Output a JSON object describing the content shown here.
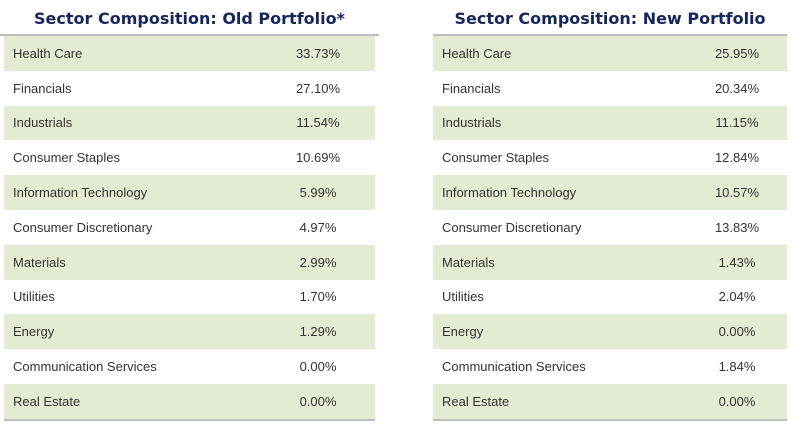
{
  "chart_data": [
    {
      "type": "table",
      "title": "Sector Composition: Old Portfolio*",
      "rows": [
        {
          "sector": "Health Care",
          "value": "33.73%"
        },
        {
          "sector": "Financials",
          "value": "27.10%"
        },
        {
          "sector": "Industrials",
          "value": "11.54%"
        },
        {
          "sector": "Consumer Staples",
          "value": "10.69%"
        },
        {
          "sector": "Information Technology",
          "value": "5.99%"
        },
        {
          "sector": "Consumer Discretionary",
          "value": "4.97%"
        },
        {
          "sector": "Materials",
          "value": "2.99%"
        },
        {
          "sector": "Utilities",
          "value": "1.70%"
        },
        {
          "sector": "Energy",
          "value": "1.29%"
        },
        {
          "sector": "Communication Services",
          "value": "0.00%"
        },
        {
          "sector": "Real Estate",
          "value": "0.00%"
        }
      ]
    },
    {
      "type": "table",
      "title": "Sector Composition: New Portfolio",
      "rows": [
        {
          "sector": "Health Care",
          "value": "25.95%"
        },
        {
          "sector": "Financials",
          "value": "20.34%"
        },
        {
          "sector": "Industrials",
          "value": "11.15%"
        },
        {
          "sector": "Consumer Staples",
          "value": "12.84%"
        },
        {
          "sector": "Information Technology",
          "value": "10.57%"
        },
        {
          "sector": "Consumer Discretionary",
          "value": "13.83%"
        },
        {
          "sector": "Materials",
          "value": "1.43%"
        },
        {
          "sector": "Utilities",
          "value": "2.04%"
        },
        {
          "sector": "Energy",
          "value": "0.00%"
        },
        {
          "sector": "Communication Services",
          "value": "1.84%"
        },
        {
          "sector": "Real Estate",
          "value": "0.00%"
        }
      ]
    }
  ],
  "colors": {
    "title": "#15265a",
    "row_shade": "#e2ecd2",
    "rule": "#bdbdbd",
    "text": "#333333"
  }
}
